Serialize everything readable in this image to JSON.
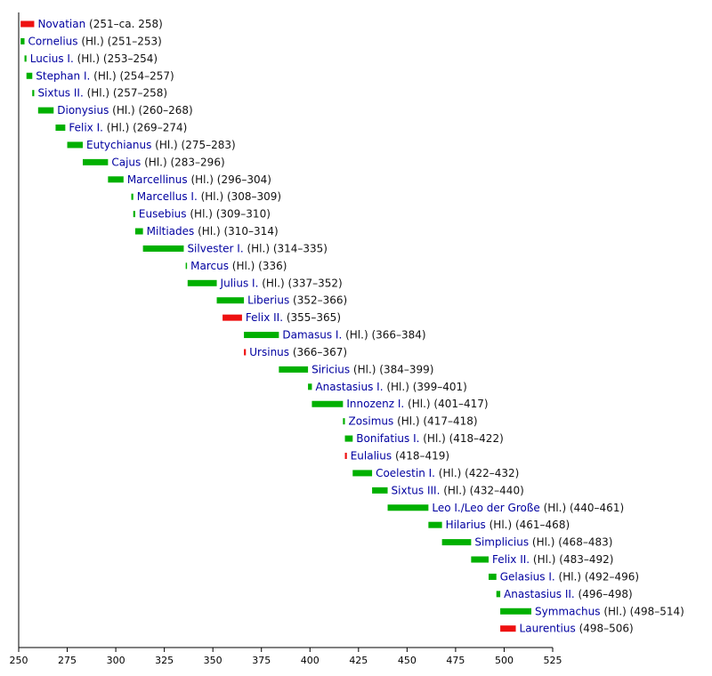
{
  "colors": {
    "pope": "#00b000",
    "antipope": "#ee1111",
    "link": "#0000a0",
    "text": "#111111",
    "axis": "#000000"
  },
  "chart_data": {
    "type": "bar",
    "orientation": "horizontal-timeline",
    "xlim": [
      250,
      525
    ],
    "xticks": [
      250,
      275,
      300,
      325,
      350,
      375,
      400,
      425,
      450,
      475,
      500,
      525
    ],
    "grid": false,
    "entries": [
      {
        "name": "Novatian",
        "suffix": "(251–ca. 258)",
        "start": 251,
        "end": 258,
        "type": "antipope"
      },
      {
        "name": "Cornelius",
        "suffix": "(Hl.) (251–253)",
        "start": 251,
        "end": 253,
        "type": "pope"
      },
      {
        "name": "Lucius I.",
        "suffix": "(Hl.) (253–254)",
        "start": 253,
        "end": 254,
        "type": "pope"
      },
      {
        "name": "Stephan I.",
        "suffix": "(Hl.) (254–257)",
        "start": 254,
        "end": 257,
        "type": "pope"
      },
      {
        "name": "Sixtus II.",
        "suffix": "(Hl.) (257–258)",
        "start": 257,
        "end": 258,
        "type": "pope"
      },
      {
        "name": "Dionysius",
        "suffix": "(Hl.) (260–268)",
        "start": 260,
        "end": 268,
        "type": "pope"
      },
      {
        "name": "Felix I.",
        "suffix": "(Hl.) (269–274)",
        "start": 269,
        "end": 274,
        "type": "pope"
      },
      {
        "name": "Eutychianus",
        "suffix": "(Hl.) (275–283)",
        "start": 275,
        "end": 283,
        "type": "pope"
      },
      {
        "name": "Cajus",
        "suffix": "(Hl.) (283–296)",
        "start": 283,
        "end": 296,
        "type": "pope"
      },
      {
        "name": "Marcellinus",
        "suffix": "(Hl.) (296–304)",
        "start": 296,
        "end": 304,
        "type": "pope"
      },
      {
        "name": "Marcellus I.",
        "suffix": "(Hl.) (308–309)",
        "start": 308,
        "end": 309,
        "type": "pope"
      },
      {
        "name": "Eusebius",
        "suffix": "(Hl.) (309–310)",
        "start": 309,
        "end": 310,
        "type": "pope"
      },
      {
        "name": "Miltiades",
        "suffix": "(Hl.) (310–314)",
        "start": 310,
        "end": 314,
        "type": "pope"
      },
      {
        "name": "Silvester I.",
        "suffix": "(Hl.) (314–335)",
        "start": 314,
        "end": 335,
        "type": "pope"
      },
      {
        "name": "Marcus",
        "suffix": "(Hl.) (336)",
        "start": 336,
        "end": 336.4,
        "type": "pope"
      },
      {
        "name": "Julius I.",
        "suffix": "(Hl.) (337–352)",
        "start": 337,
        "end": 352,
        "type": "pope"
      },
      {
        "name": "Liberius",
        "suffix": "(352–366)",
        "start": 352,
        "end": 366,
        "type": "pope"
      },
      {
        "name": "Felix II.",
        "suffix": "(355–365)",
        "start": 355,
        "end": 365,
        "type": "antipope"
      },
      {
        "name": "Damasus I.",
        "suffix": "(Hl.) (366–384)",
        "start": 366,
        "end": 384,
        "type": "pope"
      },
      {
        "name": "Ursinus",
        "suffix": "(366–367)",
        "start": 366,
        "end": 367,
        "type": "antipope"
      },
      {
        "name": "Siricius",
        "suffix": "(Hl.) (384–399)",
        "start": 384,
        "end": 399,
        "type": "pope"
      },
      {
        "name": "Anastasius I.",
        "suffix": "(Hl.) (399–401)",
        "start": 399,
        "end": 401,
        "type": "pope"
      },
      {
        "name": "Innozenz I.",
        "suffix": "(Hl.) (401–417)",
        "start": 401,
        "end": 417,
        "type": "pope"
      },
      {
        "name": "Zosimus",
        "suffix": "(Hl.) (417–418)",
        "start": 417,
        "end": 418,
        "type": "pope"
      },
      {
        "name": "Bonifatius I.",
        "suffix": "(Hl.) (418–422)",
        "start": 418,
        "end": 422,
        "type": "pope"
      },
      {
        "name": "Eulalius",
        "suffix": "(418–419)",
        "start": 418,
        "end": 419,
        "type": "antipope"
      },
      {
        "name": "Coelestin I.",
        "suffix": "(Hl.) (422–432)",
        "start": 422,
        "end": 432,
        "type": "pope"
      },
      {
        "name": "Sixtus III.",
        "suffix": "(Hl.) (432–440)",
        "start": 432,
        "end": 440,
        "type": "pope"
      },
      {
        "name": "Leo I./Leo der Große",
        "suffix": "(Hl.) (440–461)",
        "start": 440,
        "end": 461,
        "type": "pope"
      },
      {
        "name": "Hilarius",
        "suffix": "(Hl.) (461–468)",
        "start": 461,
        "end": 468,
        "type": "pope"
      },
      {
        "name": "Simplicius",
        "suffix": "(Hl.) (468–483)",
        "start": 468,
        "end": 483,
        "type": "pope"
      },
      {
        "name": "Felix II.",
        "suffix": "(Hl.) (483–492)",
        "start": 483,
        "end": 492,
        "type": "pope"
      },
      {
        "name": "Gelasius I.",
        "suffix": "(Hl.) (492–496)",
        "start": 492,
        "end": 496,
        "type": "pope"
      },
      {
        "name": "Anastasius II.",
        "suffix": "(496–498)",
        "start": 496,
        "end": 498,
        "type": "pope"
      },
      {
        "name": "Symmachus",
        "suffix": "(Hl.) (498–514)",
        "start": 498,
        "end": 514,
        "type": "pope"
      },
      {
        "name": "Laurentius",
        "suffix": "(498–506)",
        "start": 498,
        "end": 506,
        "type": "antipope"
      }
    ]
  }
}
